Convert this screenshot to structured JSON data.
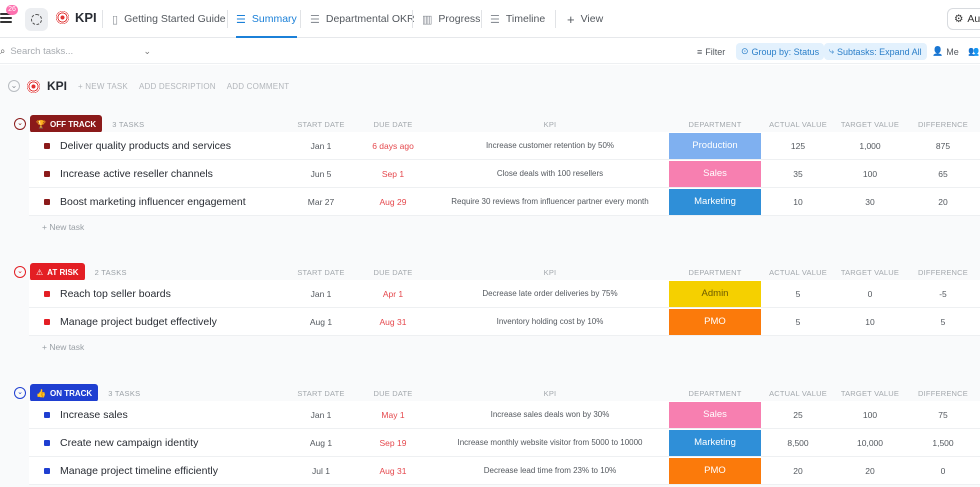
{
  "topbar": {
    "notifications": "26",
    "list_name": "KPI",
    "tabs": [
      {
        "label": "Getting Started Guide",
        "icon": "doc-icon"
      },
      {
        "label": "Summary",
        "icon": "list-icon",
        "active": true
      },
      {
        "label": "Departmental OKR",
        "icon": "list-icon"
      },
      {
        "label": "Progress",
        "icon": "board-icon"
      },
      {
        "label": "Timeline",
        "icon": "timeline-icon"
      },
      {
        "label": "View",
        "icon": "plus-icon"
      }
    ],
    "automation_label": "Au"
  },
  "toolbar": {
    "search_placeholder": "Search tasks...",
    "filter": "Filter",
    "group_by": "Group by: Status",
    "subtasks": "Subtasks: Expand All",
    "me": "Me"
  },
  "list_header": {
    "name": "KPI",
    "new_task": "+ NEW TASK",
    "add_description": "ADD DESCRIPTION",
    "add_comment": "ADD COMMENT"
  },
  "columns": {
    "start_date": "START DATE",
    "due_date": "DUE DATE",
    "kpi": "KPI",
    "department": "DEPARTMENT",
    "actual_value": "ACTUAL VALUE",
    "target_value": "TARGET VALUE",
    "difference": "DIFFERENCE"
  },
  "new_task_label": "+ New task",
  "colors": {
    "off_track": "#8b1a1a",
    "at_risk": "#e31e24",
    "on_track": "#1f3fd1",
    "production": "#7fb0f0",
    "sales": "#f77fb0",
    "marketing": "#2f8fd8",
    "admin": "#f5d000",
    "pmo": "#fb7a0b"
  },
  "groups": [
    {
      "status": "OFF TRACK",
      "icon": "trophy-icon",
      "count": "3 TASKS",
      "tasks": [
        {
          "name": "Deliver quality products and services",
          "start": "Jan 1",
          "due": "6 days ago",
          "kpi": "Increase customer retention by 50%",
          "department": "Production",
          "actual": "125",
          "target": "1,000",
          "difference": "875"
        },
        {
          "name": "Increase active reseller channels",
          "start": "Jun 5",
          "due": "Sep 1",
          "kpi": "Close deals with 100 resellers",
          "department": "Sales",
          "actual": "35",
          "target": "100",
          "difference": "65"
        },
        {
          "name": "Boost marketing influencer engagement",
          "start": "Mar 27",
          "due": "Aug 29",
          "kpi": "Require 30 reviews from influencer partner every month",
          "department": "Marketing",
          "actual": "10",
          "target": "30",
          "difference": "20"
        }
      ]
    },
    {
      "status": "AT RISK",
      "icon": "warning-icon",
      "count": "2 TASKS",
      "tasks": [
        {
          "name": "Reach top seller boards",
          "start": "Jan 1",
          "due": "Apr 1",
          "kpi": "Decrease late order deliveries by 75%",
          "department": "Admin",
          "actual": "5",
          "target": "0",
          "difference": "-5"
        },
        {
          "name": "Manage project budget effectively",
          "start": "Aug 1",
          "due": "Aug 31",
          "kpi": "Inventory holding cost by 10%",
          "department": "PMO",
          "actual": "5",
          "target": "10",
          "difference": "5"
        }
      ]
    },
    {
      "status": "ON TRACK",
      "icon": "thumbs-up-icon",
      "count": "3 TASKS",
      "tasks": [
        {
          "name": "Increase sales",
          "start": "Jan 1",
          "due": "May 1",
          "kpi": "Increase sales deals won by 30%",
          "department": "Sales",
          "actual": "25",
          "target": "100",
          "difference": "75"
        },
        {
          "name": "Create new campaign identity",
          "start": "Aug 1",
          "due": "Sep 19",
          "kpi": "Increase monthly website visitor from 5000 to 10000",
          "department": "Marketing",
          "actual": "8,500",
          "target": "10,000",
          "difference": "1,500"
        },
        {
          "name": "Manage project timeline efficiently",
          "start": "Jul 1",
          "due": "Aug 31",
          "kpi": "Decrease lead time from 23% to 10%",
          "department": "PMO",
          "actual": "20",
          "target": "20",
          "difference": "0"
        }
      ]
    }
  ]
}
